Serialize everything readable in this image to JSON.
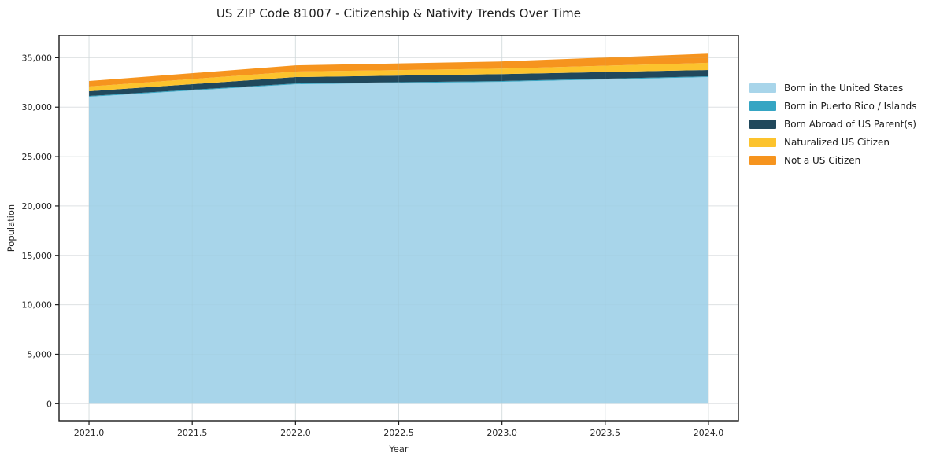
{
  "title": "US ZIP Code 81007 - Citizenship & Nativity Trends Over Time",
  "chart_data": {
    "type": "area",
    "stacked": true,
    "title": "US ZIP Code 81007 - Citizenship & Nativity Trends Over Time",
    "xlabel": "Year",
    "ylabel": "Population",
    "x": [
      2021,
      2022,
      2023,
      2024
    ],
    "series": [
      {
        "name": "Born in the United States",
        "color": "#a8d5ea",
        "values": [
          31050,
          32320,
          32560,
          33040
        ]
      },
      {
        "name": "Born in Puerto Rico / Islands",
        "color": "#35a5c3",
        "values": [
          80,
          80,
          80,
          80
        ]
      },
      {
        "name": "Born Abroad of US Parent(s)",
        "color": "#20485c",
        "values": [
          480,
          640,
          700,
          640
        ]
      },
      {
        "name": "Naturalized US Citizen",
        "color": "#fcc32d",
        "values": [
          480,
          560,
          560,
          720
        ]
      },
      {
        "name": "Not a US Citizen",
        "color": "#f6941e",
        "values": [
          550,
          630,
          720,
          930
        ]
      }
    ],
    "totals": [
      32640,
      34230,
      34620,
      35410
    ],
    "xlim": [
      2020.855,
      2024.145
    ],
    "ylim": [
      -1726,
      37259
    ],
    "xticks": [
      {
        "v": 2021.0,
        "label": "2021.0"
      },
      {
        "v": 2021.5,
        "label": "2021.5"
      },
      {
        "v": 2022.0,
        "label": "2022.0"
      },
      {
        "v": 2022.5,
        "label": "2022.5"
      },
      {
        "v": 2023.0,
        "label": "2023.0"
      },
      {
        "v": 2023.5,
        "label": "2023.5"
      },
      {
        "v": 2024.0,
        "label": "2024.0"
      }
    ],
    "yticks": [
      {
        "v": 0,
        "label": "0"
      },
      {
        "v": 5000,
        "label": "5,000"
      },
      {
        "v": 10000,
        "label": "10,000"
      },
      {
        "v": 15000,
        "label": "15,000"
      },
      {
        "v": 20000,
        "label": "20,000"
      },
      {
        "v": 25000,
        "label": "25,000"
      },
      {
        "v": 30000,
        "label": "30,000"
      },
      {
        "v": 35000,
        "label": "35,000"
      }
    ],
    "grid": true,
    "legend_position": "right-outside"
  }
}
